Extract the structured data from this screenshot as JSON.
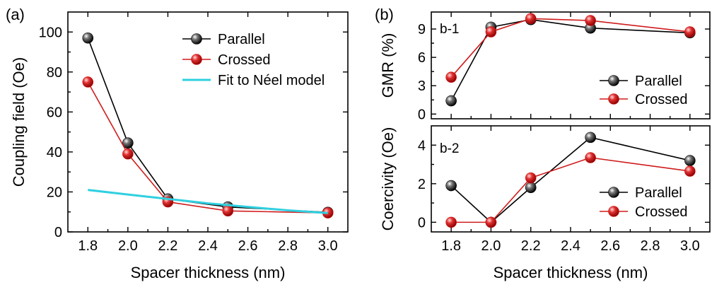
{
  "colors": {
    "parallel": "#000000",
    "crossed": "#d01c1c",
    "fit": "#2fd0e0",
    "axis": "#000000"
  },
  "chart_data": [
    {
      "id": "a",
      "panel_label": "(a)",
      "type": "line",
      "xlabel": "Spacer thickness (nm)",
      "ylabel": "Coupling field (Oe)",
      "xlim": [
        1.7,
        3.1
      ],
      "ylim": [
        0,
        110
      ],
      "xticks": [
        1.8,
        2.0,
        2.2,
        2.4,
        2.6,
        2.8,
        3.0
      ],
      "xtick_labels": [
        "1.8",
        "2.0",
        "2.2",
        "2.4",
        "2.6",
        "2.8",
        "3.0"
      ],
      "yticks": [
        0,
        20,
        40,
        60,
        80,
        100
      ],
      "ytick_labels": [
        "0",
        "20",
        "40",
        "60",
        "80",
        "100"
      ],
      "legend_position": "top-right",
      "series": [
        {
          "name": "Parallel",
          "color_key": "parallel",
          "markers": true,
          "x": [
            1.8,
            2.0,
            2.2,
            2.5,
            3.0
          ],
          "y": [
            97,
            44.5,
            16.5,
            12.5,
            9.8
          ]
        },
        {
          "name": "Crossed",
          "color_key": "crossed",
          "markers": true,
          "x": [
            1.8,
            2.0,
            2.2,
            2.5,
            3.0
          ],
          "y": [
            75,
            39,
            15,
            10.5,
            9.5
          ]
        },
        {
          "name": "Fit to Néel model",
          "color_key": "fit",
          "markers": false,
          "x": [
            1.8,
            2.0,
            2.2,
            2.4,
            2.6,
            2.8,
            3.0
          ],
          "y": [
            21,
            18.7,
            16.5,
            14.3,
            12.5,
            10.8,
            9.4
          ]
        }
      ]
    },
    {
      "id": "b-1",
      "panel_label": "(b)",
      "sub_label": "b-1",
      "type": "line",
      "xlabel": "",
      "ylabel": "GMR (%)",
      "xlim": [
        1.7,
        3.1
      ],
      "ylim": [
        -0.5,
        10.8
      ],
      "xticks": [
        1.8,
        2.0,
        2.2,
        2.4,
        2.6,
        2.8,
        3.0
      ],
      "xtick_labels": [],
      "yticks": [
        0,
        3,
        6,
        9
      ],
      "ytick_labels": [
        "0",
        "3",
        "6",
        "9"
      ],
      "legend_position": "bottom-right",
      "series": [
        {
          "name": "Parallel",
          "color_key": "parallel",
          "markers": true,
          "x": [
            1.8,
            2.0,
            2.2,
            2.5,
            3.0
          ],
          "y": [
            1.4,
            9.2,
            10.0,
            9.1,
            8.6
          ]
        },
        {
          "name": "Crossed",
          "color_key": "crossed",
          "markers": true,
          "x": [
            1.8,
            2.0,
            2.2,
            2.5,
            3.0
          ],
          "y": [
            3.9,
            8.7,
            10.1,
            9.9,
            8.7
          ]
        }
      ]
    },
    {
      "id": "b-2",
      "sub_label": "b-2",
      "type": "line",
      "xlabel": "Spacer thickness (nm)",
      "ylabel": "Coercivity (Oe)",
      "xlim": [
        1.7,
        3.1
      ],
      "ylim": [
        -0.5,
        5.0
      ],
      "xticks": [
        1.8,
        2.0,
        2.2,
        2.4,
        2.6,
        2.8,
        3.0
      ],
      "xtick_labels": [
        "1.8",
        "2.0",
        "2.2",
        "2.4",
        "2.6",
        "2.8",
        "3.0"
      ],
      "yticks": [
        0,
        2,
        4
      ],
      "ytick_labels": [
        "0",
        "2",
        "4"
      ],
      "legend_position": "bottom-right",
      "series": [
        {
          "name": "Parallel",
          "color_key": "parallel",
          "markers": true,
          "x": [
            1.8,
            2.0,
            2.2,
            2.5,
            3.0
          ],
          "y": [
            1.9,
            0.0,
            1.8,
            4.4,
            3.2
          ]
        },
        {
          "name": "Crossed",
          "color_key": "crossed",
          "markers": true,
          "x": [
            1.8,
            2.0,
            2.2,
            2.5,
            3.0
          ],
          "y": [
            0.0,
            0.0,
            2.3,
            3.35,
            2.65
          ]
        }
      ]
    }
  ]
}
